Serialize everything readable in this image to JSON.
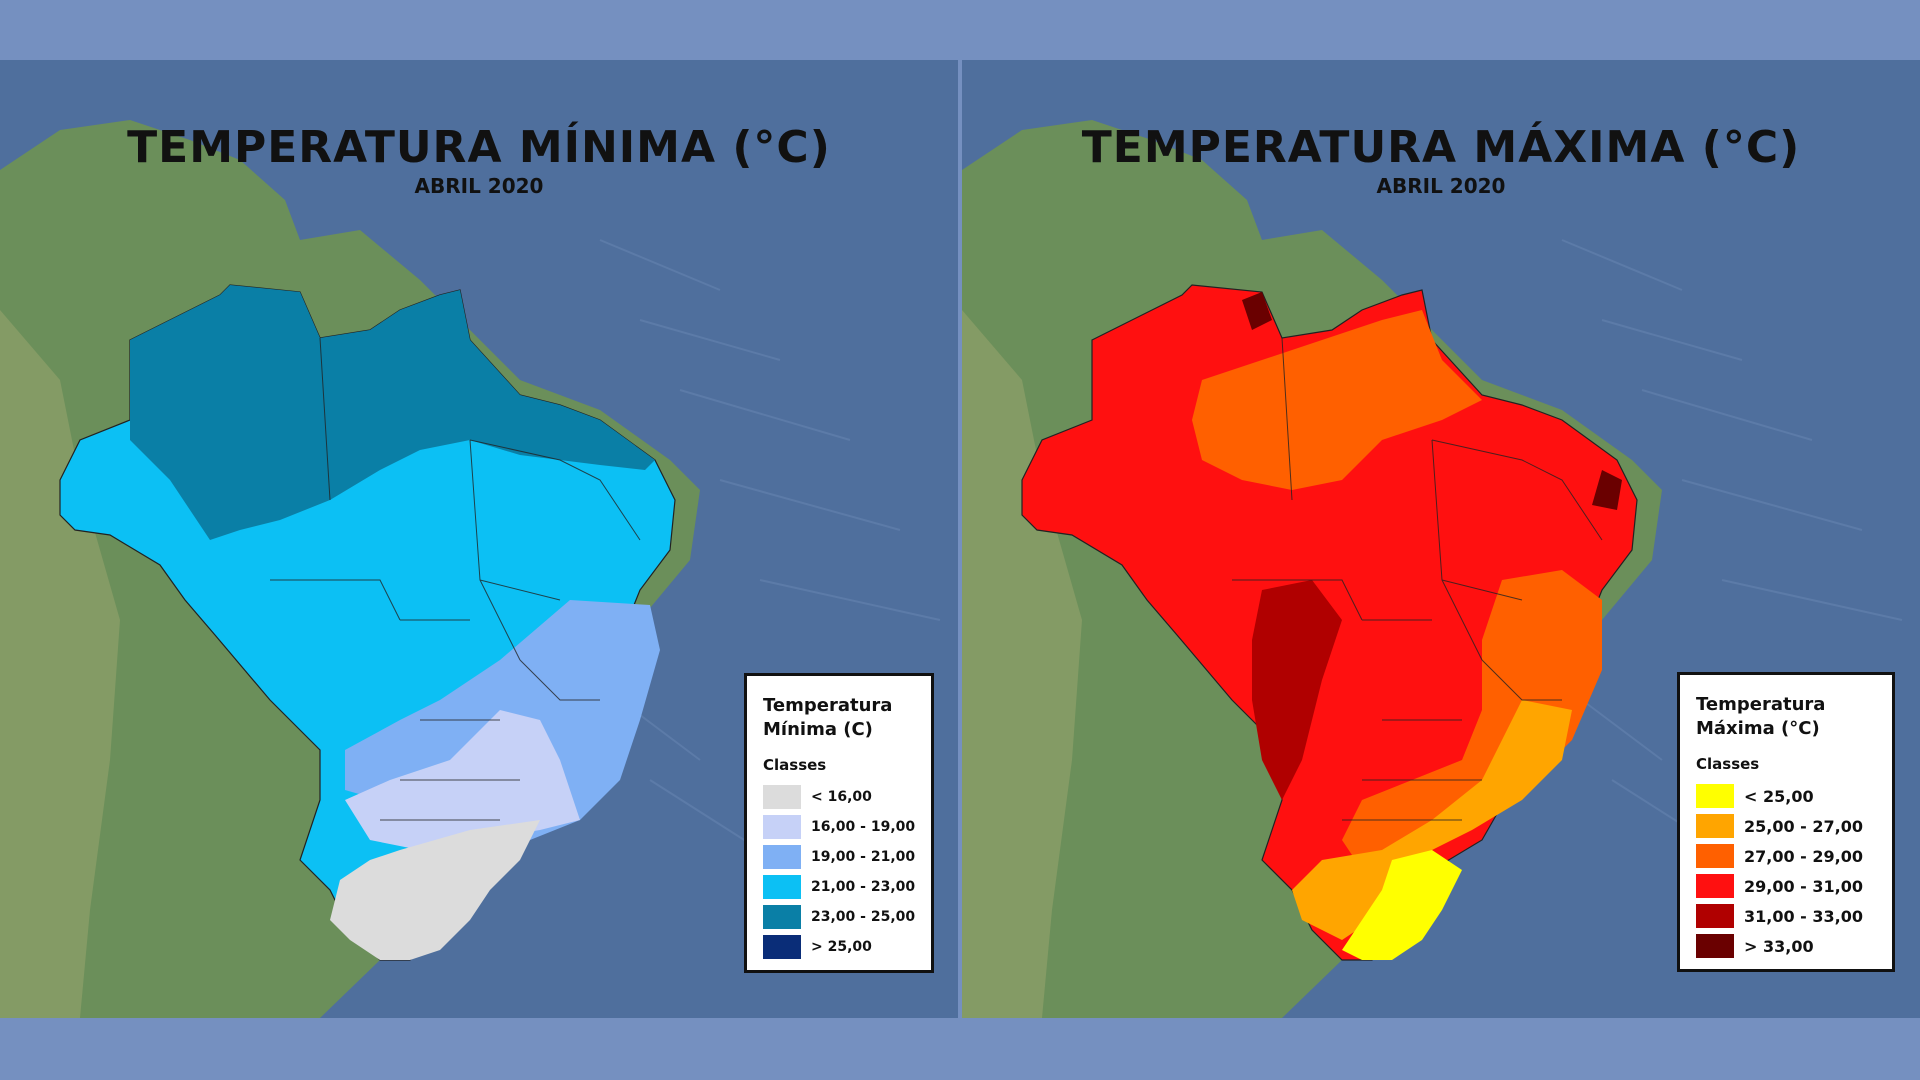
{
  "min_map": {
    "title": "TEMPERATURA MÍNIMA (°C)",
    "subtitle": "ABRIL 2020",
    "legend": {
      "title": "Temperatura Mínima (C)",
      "classes_label": "Classes",
      "items": [
        {
          "label": "< 16,00",
          "color": "#dcdcdc"
        },
        {
          "label": "16,00 - 19,00",
          "color": "#c6d1f7"
        },
        {
          "label": "19,00 - 21,00",
          "color": "#7fb0f4"
        },
        {
          "label": "21,00 - 23,00",
          "color": "#0cc0f4"
        },
        {
          "label": "23,00 - 25,00",
          "color": "#0a7fa6"
        },
        {
          "label": "> 25,00",
          "color": "#0a2d78"
        }
      ]
    }
  },
  "max_map": {
    "title": "TEMPERATURA MÁXIMA (°C)",
    "subtitle": "ABRIL 2020",
    "legend": {
      "title": "Temperatura Máxima (°C)",
      "classes_label": "Classes",
      "items": [
        {
          "label": "< 25,00",
          "color": "#ffff00"
        },
        {
          "label": "25,00 - 27,00",
          "color": "#ffa500"
        },
        {
          "label": "27,00 - 29,00",
          "color": "#ff6000"
        },
        {
          "label": "29,00 - 31,00",
          "color": "#ff1010"
        },
        {
          "label": "31,00 - 33,00",
          "color": "#b00000"
        },
        {
          "label": "> 33,00",
          "color": "#6a0000"
        }
      ]
    }
  }
}
